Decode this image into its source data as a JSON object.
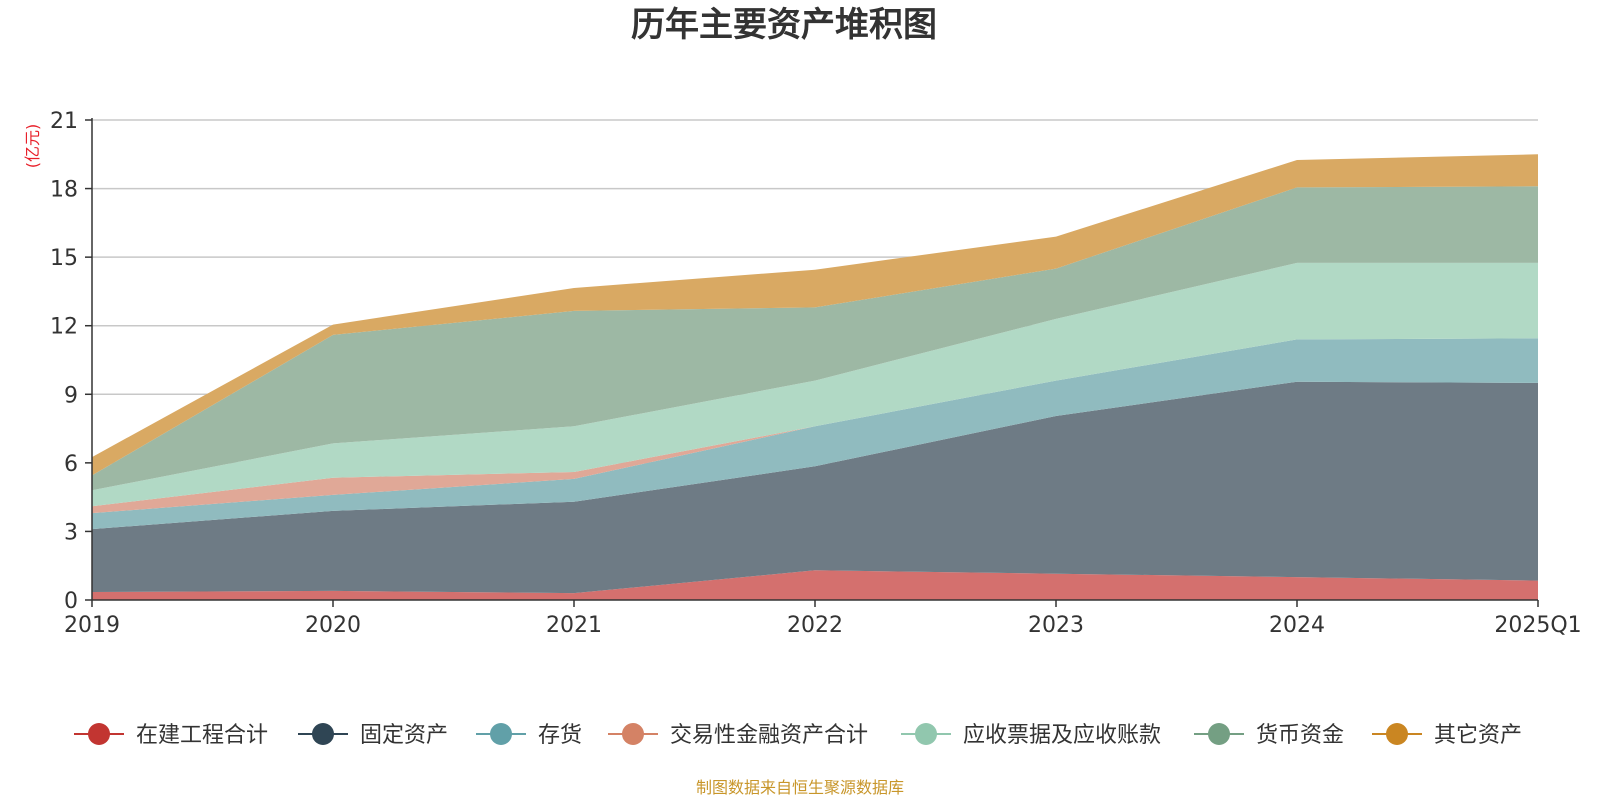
{
  "chart_data": {
    "type": "area",
    "stacked": true,
    "title": "历年主要资产堆积图",
    "unit": "(亿元)",
    "categories": [
      "2019",
      "2020",
      "2021",
      "2022",
      "2023",
      "2024",
      "2025Q1"
    ],
    "y_ticks": [
      "0",
      "3",
      "6",
      "9",
      "12",
      "15",
      "18",
      "21"
    ],
    "ylim": [
      0,
      21
    ],
    "grid": true,
    "legend_position": "bottom",
    "series": [
      {
        "name": "在建工程合计",
        "color": "#c23531",
        "fill": "#d4706e",
        "values": [
          0.35,
          0.4,
          0.3,
          1.3,
          1.15,
          1.0,
          0.85
        ]
      },
      {
        "name": "固定资产",
        "color": "#2f4554",
        "fill": "#6e7b85",
        "values": [
          2.75,
          3.5,
          4.0,
          4.55,
          6.9,
          8.55,
          8.65
        ]
      },
      {
        "name": "存货",
        "color": "#61a0a8",
        "fill": "#90bbbf",
        "values": [
          0.7,
          0.7,
          1.0,
          1.75,
          1.55,
          1.85,
          1.95
        ]
      },
      {
        "name": "交易性金融资产合计",
        "color": "#d48265",
        "fill": "#e0a897",
        "values": [
          0.3,
          0.75,
          0.3,
          0.0,
          0.0,
          0.0,
          0.0
        ]
      },
      {
        "name": "应收票据及应收账款",
        "color": "#91c7ae",
        "fill": "#b1d9c5",
        "values": [
          0.7,
          1.5,
          2.0,
          2.0,
          2.7,
          3.35,
          3.3
        ]
      },
      {
        "name": "货币资金",
        "color": "#749f83",
        "fill": "#9db8a4",
        "values": [
          0.65,
          4.75,
          5.05,
          3.2,
          2.2,
          3.3,
          3.35
        ]
      },
      {
        "name": "其它资产",
        "color": "#ca8622",
        "fill": "#d9a963",
        "values": [
          0.8,
          0.45,
          1.0,
          1.65,
          1.4,
          1.2,
          1.4
        ]
      }
    ]
  },
  "footer": {
    "source": "制图数据来自恒生聚源数据库"
  }
}
